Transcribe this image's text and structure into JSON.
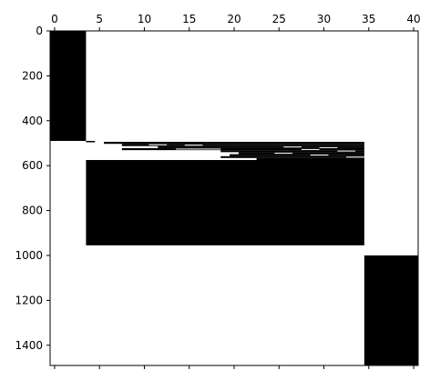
{
  "chart_data": {
    "type": "heatmap",
    "title": "",
    "xlabel": "",
    "ylabel": "",
    "xlim": [
      -0.5,
      40.5
    ],
    "ylim": [
      1490,
      0
    ],
    "x_axis_position": "top",
    "grid": false,
    "legend": "none",
    "colors": {
      "filled": "#000000",
      "empty": "#ffffff",
      "axis": "#000000"
    },
    "x_ticks": [
      {
        "value": 0,
        "label": "0"
      },
      {
        "value": 5,
        "label": "5"
      },
      {
        "value": 10,
        "label": "10"
      },
      {
        "value": 15,
        "label": "15"
      },
      {
        "value": 20,
        "label": "20"
      },
      {
        "value": 25,
        "label": "25"
      },
      {
        "value": 30,
        "label": "30"
      },
      {
        "value": 35,
        "label": "35"
      },
      {
        "value": 40,
        "label": "40"
      }
    ],
    "y_ticks": [
      {
        "value": 0,
        "label": "0"
      },
      {
        "value": 200,
        "label": "200"
      },
      {
        "value": 400,
        "label": "400"
      },
      {
        "value": 600,
        "label": "600"
      },
      {
        "value": 800,
        "label": "800"
      },
      {
        "value": 1000,
        "label": "1000"
      },
      {
        "value": 1200,
        "label": "1200"
      },
      {
        "value": 1400,
        "label": "1400"
      }
    ],
    "blocks": [
      {
        "name": "rows 0-490, cols 0-3",
        "col_start": -0.5,
        "col_end": 3.5,
        "row_start": 0,
        "row_end": 490
      },
      {
        "name": "dense block rows 575-955",
        "col_start": 3.5,
        "col_end": 34.5,
        "row_start": 575,
        "row_end": 955
      },
      {
        "name": "rows 1000-1490, col 35+",
        "col_start": 34.5,
        "col_end": 40.5,
        "row_start": 1000,
        "row_end": 1490
      },
      {
        "name": "sparse band 1",
        "col_start": 3.5,
        "col_end": 4.5,
        "row_start": 490,
        "row_end": 496
      },
      {
        "name": "sparse band 2",
        "col_start": 5.5,
        "col_end": 34.5,
        "row_start": 494,
        "row_end": 503
      },
      {
        "name": "sparse band 3",
        "col_start": 7.5,
        "col_end": 34.5,
        "row_start": 503,
        "row_end": 513
      },
      {
        "name": "sparse band 4",
        "col_start": 11.5,
        "col_end": 34.5,
        "row_start": 513,
        "row_end": 522
      },
      {
        "name": "sparse band 5",
        "col_start": 7.5,
        "col_end": 34.5,
        "row_start": 522,
        "row_end": 531
      },
      {
        "name": "sparse band 6",
        "col_start": 18.5,
        "col_end": 34.5,
        "row_start": 531,
        "row_end": 540
      },
      {
        "name": "sparse band 7",
        "col_start": 20.5,
        "col_end": 34.5,
        "row_start": 540,
        "row_end": 549
      },
      {
        "name": "sparse band 8",
        "col_start": 19.5,
        "col_end": 34.5,
        "row_start": 549,
        "row_end": 558
      },
      {
        "name": "sparse band 9",
        "col_start": 18.5,
        "col_end": 34.5,
        "row_start": 558,
        "row_end": 566
      },
      {
        "name": "sparse band 10",
        "col_start": 22.5,
        "col_end": 34.5,
        "row_start": 566,
        "row_end": 575
      }
    ],
    "gaps": [
      {
        "col_start": 10.5,
        "col_end": 12.5,
        "row_start": 505,
        "row_end": 509
      },
      {
        "col_start": 14.5,
        "col_end": 16.5,
        "row_start": 507,
        "row_end": 511
      },
      {
        "col_start": 25.5,
        "col_end": 27.5,
        "row_start": 515,
        "row_end": 519
      },
      {
        "col_start": 29.5,
        "col_end": 31.5,
        "row_start": 518,
        "row_end": 522
      },
      {
        "col_start": 13.5,
        "col_end": 18.5,
        "row_start": 524,
        "row_end": 528
      },
      {
        "col_start": 27.5,
        "col_end": 29.5,
        "row_start": 526,
        "row_end": 530
      },
      {
        "col_start": 31.5,
        "col_end": 33.5,
        "row_start": 533,
        "row_end": 537
      },
      {
        "col_start": 24.5,
        "col_end": 26.5,
        "row_start": 543,
        "row_end": 547
      },
      {
        "col_start": 28.5,
        "col_end": 30.5,
        "row_start": 551,
        "row_end": 555
      },
      {
        "col_start": 32.5,
        "col_end": 34.5,
        "row_start": 560,
        "row_end": 564
      }
    ]
  }
}
